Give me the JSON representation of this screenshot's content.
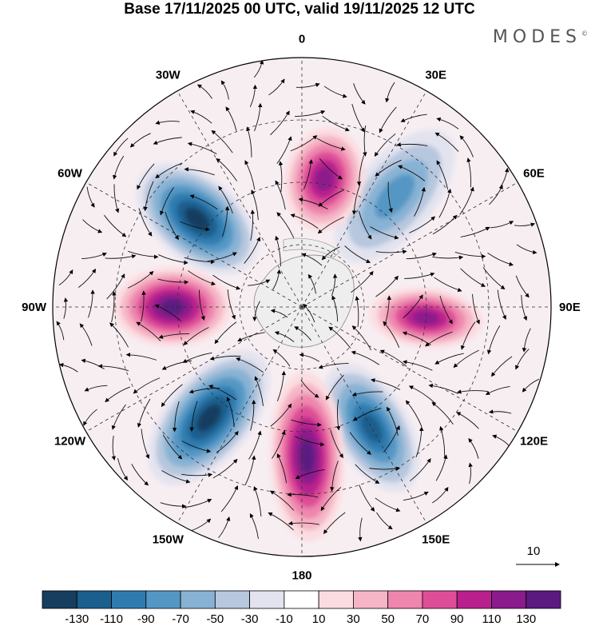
{
  "header": {
    "title": "Base 17/11/2025 00 UTC, valid 19/11/2025 12 UTC",
    "brand": "MODES",
    "brand_mark": "©"
  },
  "map": {
    "projection": "south-polar-stereographic",
    "longitude_labels": [
      "0",
      "30E",
      "60E",
      "90E",
      "120E",
      "150E",
      "180",
      "150W",
      "120W",
      "90W",
      "60W",
      "30W"
    ],
    "reference_vector_label": "10"
  },
  "colorbar": {
    "colors": [
      "#173e5e",
      "#1b5f8e",
      "#2f7bb0",
      "#5597c4",
      "#88b2d4",
      "#b6c7de",
      "#e3e3ef",
      "#ffffff",
      "#fbdde1",
      "#f5b5c6",
      "#ee86ad",
      "#de4d97",
      "#b9208e",
      "#8b1a8c",
      "#5a1a80"
    ],
    "tick_labels": [
      "-130",
      "-110",
      "-90",
      "-70",
      "-50",
      "-30",
      "-10",
      "10",
      "30",
      "50",
      "70",
      "90",
      "110",
      "130"
    ]
  },
  "anomalies": [
    {
      "sign": "negative",
      "strength": 0.95,
      "longitude": -50
    },
    {
      "sign": "negative",
      "strength": 0.95,
      "longitude": -140
    },
    {
      "sign": "negative",
      "strength": 0.9,
      "longitude": 150
    },
    {
      "sign": "negative",
      "strength": 0.55,
      "longitude": 40
    },
    {
      "sign": "positive",
      "strength": 0.8,
      "longitude": 10
    },
    {
      "sign": "positive",
      "strength": 0.95,
      "longitude": -90
    },
    {
      "sign": "positive",
      "strength": 0.98,
      "longitude": 178
    },
    {
      "sign": "positive",
      "strength": 0.85,
      "longitude": 95
    }
  ]
}
